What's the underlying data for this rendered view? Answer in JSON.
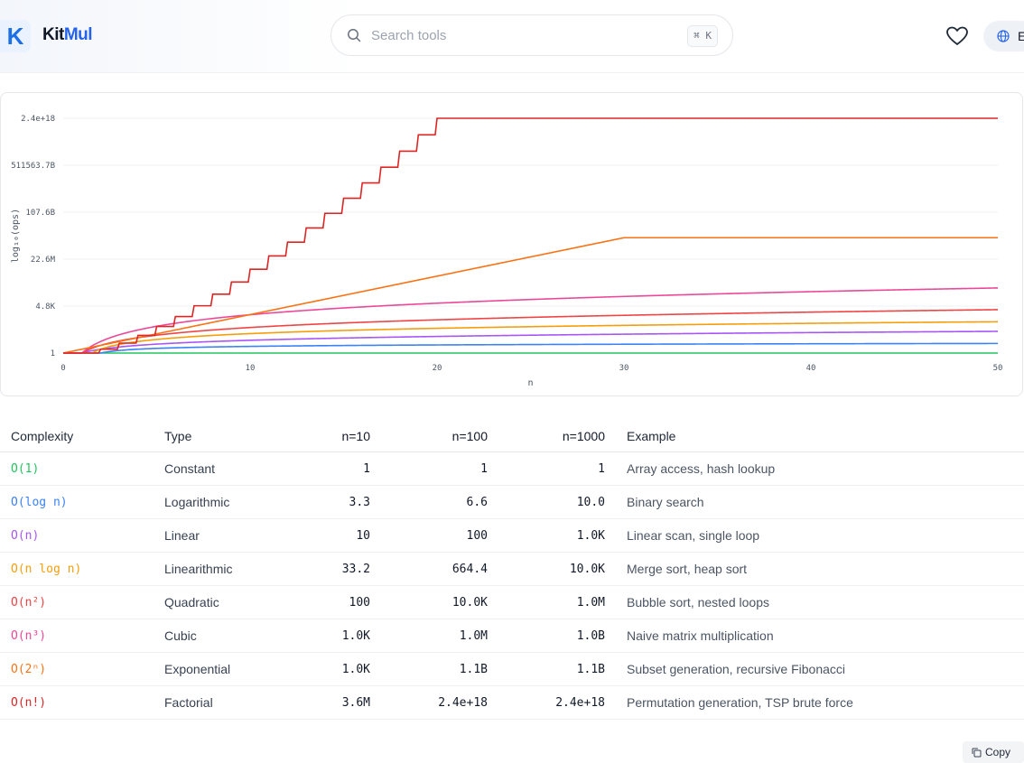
{
  "header": {
    "logo_letter": "K",
    "logo_part1": "Kit",
    "logo_part2": "Mul",
    "search_placeholder": "Search tools",
    "search_shortcut": "⌘ K",
    "language_label": "E"
  },
  "chart_data": {
    "type": "line",
    "xlabel": "n",
    "ylabel": "log₁₀(ops)",
    "x_ticks": [
      0,
      10,
      20,
      30,
      40,
      50
    ],
    "xlim": [
      0,
      50
    ],
    "y_ticks": [
      "1",
      "4.8K",
      "22.6M",
      "107.6B",
      "511563.7B",
      "2.4e+18"
    ],
    "ylim_log10": [
      0,
      18.38
    ],
    "grid": true,
    "series": [
      {
        "name": "O(1)",
        "color": "#22c55e"
      },
      {
        "name": "O(log n)",
        "color": "#3b82f6"
      },
      {
        "name": "O(n)",
        "color": "#a855f7"
      },
      {
        "name": "O(n log n)",
        "color": "#f59e0b"
      },
      {
        "name": "O(n²)",
        "color": "#ef4444"
      },
      {
        "name": "O(n³)",
        "color": "#ec4899"
      },
      {
        "name": "O(2ⁿ)",
        "color": "#f97316"
      },
      {
        "name": "O(n!)",
        "color": "#dc2626"
      }
    ]
  },
  "table": {
    "headers": [
      "Complexity",
      "Type",
      "n=10",
      "n=100",
      "n=1000",
      "Example"
    ],
    "rows": [
      {
        "complexity": "O(1)",
        "color": "#22c55e",
        "type": "Constant",
        "n10": "1",
        "n100": "1",
        "n1000": "1",
        "example": "Array access, hash lookup"
      },
      {
        "complexity": "O(log n)",
        "color": "#3b82f6",
        "type": "Logarithmic",
        "n10": "3.3",
        "n100": "6.6",
        "n1000": "10.0",
        "example": "Binary search"
      },
      {
        "complexity": "O(n)",
        "color": "#a855f7",
        "type": "Linear",
        "n10": "10",
        "n100": "100",
        "n1000": "1.0K",
        "example": "Linear scan, single loop"
      },
      {
        "complexity": "O(n log n)",
        "color": "#f59e0b",
        "type": "Linearithmic",
        "n10": "33.2",
        "n100": "664.4",
        "n1000": "10.0K",
        "example": "Merge sort, heap sort"
      },
      {
        "complexity": "O(n²)",
        "color": "#ef4444",
        "type": "Quadratic",
        "n10": "100",
        "n100": "10.0K",
        "n1000": "1.0M",
        "example": "Bubble sort, nested loops"
      },
      {
        "complexity": "O(n³)",
        "color": "#ec4899",
        "type": "Cubic",
        "n10": "1.0K",
        "n100": "1.0M",
        "n1000": "1.0B",
        "example": "Naive matrix multiplication"
      },
      {
        "complexity": "O(2ⁿ)",
        "color": "#f97316",
        "type": "Exponential",
        "n10": "1.0K",
        "n100": "1.1B",
        "n1000": "1.1B",
        "example": "Subset generation, recursive Fibonacci"
      },
      {
        "complexity": "O(n!)",
        "color": "#dc2626",
        "type": "Factorial",
        "n10": "3.6M",
        "n100": "2.4e+18",
        "n1000": "2.4e+18",
        "example": "Permutation generation, TSP brute force"
      }
    ]
  },
  "copy_label": "Copy"
}
